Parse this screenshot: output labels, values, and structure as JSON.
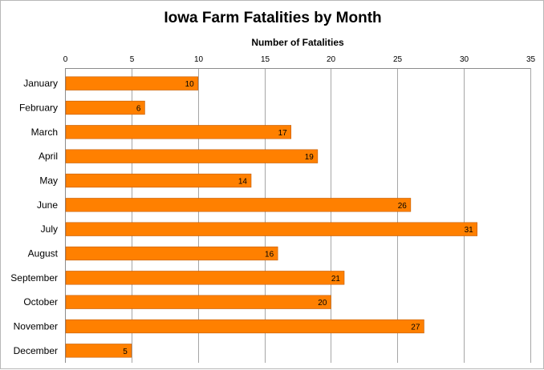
{
  "chart_data": {
    "type": "bar",
    "orientation": "horizontal",
    "title": "Iowa Farm Fatalities by Month",
    "xlabel": "Number of Fatalities",
    "ylabel": "",
    "xlim": [
      0,
      35
    ],
    "x_ticks": [
      0,
      5,
      10,
      15,
      20,
      25,
      30,
      35
    ],
    "x_axis_position": "top",
    "grid": true,
    "legend": "none",
    "bar_color": "#FF8000",
    "categories": [
      "January",
      "February",
      "March",
      "April",
      "May",
      "June",
      "July",
      "August",
      "September",
      "October",
      "November",
      "December"
    ],
    "values": [
      10,
      6,
      17,
      19,
      14,
      26,
      31,
      16,
      21,
      20,
      27,
      5
    ]
  }
}
